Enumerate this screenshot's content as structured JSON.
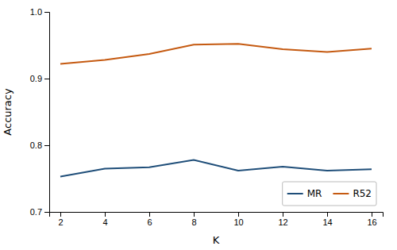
{
  "chart_data": {
    "type": "line",
    "x": [
      2,
      4,
      6,
      8,
      10,
      12,
      14,
      16
    ],
    "series": [
      {
        "name": "MR",
        "color": "#1f4e79",
        "values": [
          0.753,
          0.765,
          0.767,
          0.778,
          0.762,
          0.768,
          0.762,
          0.764
        ]
      },
      {
        "name": "R52",
        "color": "#c55a11",
        "values": [
          0.922,
          0.928,
          0.937,
          0.951,
          0.952,
          0.944,
          0.94,
          0.945
        ]
      }
    ],
    "xlabel": "K",
    "ylabel": "Accuracy",
    "xlim": [
      1.5,
      16.5
    ],
    "xticks": [
      2,
      4,
      6,
      8,
      10,
      12,
      14,
      16
    ],
    "ylim": [
      0.7,
      1.0
    ],
    "yticks": [
      0.7,
      0.8,
      0.9,
      {
        "value": 1.0,
        "label": "1.0"
      }
    ],
    "legend": "lower right",
    "grid": false
  }
}
